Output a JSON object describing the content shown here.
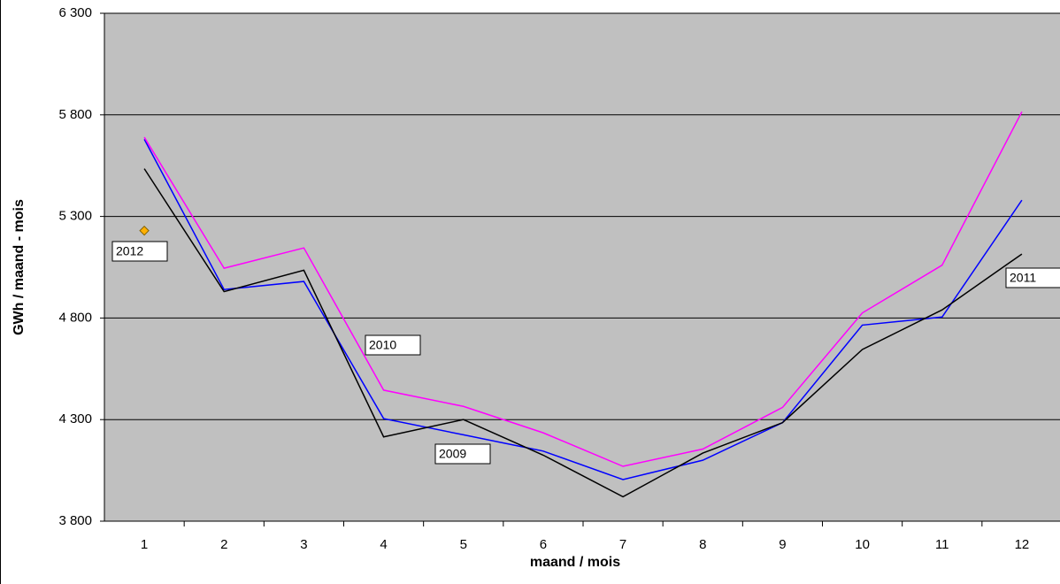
{
  "chart_data": {
    "type": "line",
    "x_label": "maand  /  mois",
    "y_label": "GWh / maand - mois",
    "categories": [
      "1",
      "2",
      "3",
      "4",
      "5",
      "6",
      "7",
      "8",
      "9",
      "10",
      "11",
      "12"
    ],
    "series": [
      {
        "name": "2009",
        "color": "#0000ff",
        "values": [
          5680,
          4940,
          4980,
          4305,
          4225,
          4145,
          4005,
          4100,
          4285,
          4765,
          4805,
          5380
        ]
      },
      {
        "name": "2010",
        "color": "#ff00ff",
        "values": [
          5690,
          5045,
          5145,
          4445,
          4365,
          4235,
          4070,
          4155,
          4360,
          4825,
          5060,
          5815
        ]
      },
      {
        "name": "2011",
        "color": "#000000",
        "values": [
          5535,
          4930,
          5035,
          4215,
          4300,
          4125,
          3920,
          4135,
          4285,
          4645,
          4840,
          5115
        ]
      },
      {
        "name": "2012",
        "color": "#ffb000",
        "marker": "diamond",
        "values": [
          5230,
          null,
          null,
          null,
          null,
          null,
          null,
          null,
          null,
          null,
          null,
          null
        ]
      }
    ],
    "ylim": [
      3800,
      6300
    ],
    "yticks": [
      {
        "value": 3800,
        "label": "3 800"
      },
      {
        "value": 4300,
        "label": "4 300"
      },
      {
        "value": 4800,
        "label": "4 800"
      },
      {
        "value": 5300,
        "label": "5 300"
      },
      {
        "value": 5800,
        "label": "5 800"
      },
      {
        "value": 6300,
        "label": "6 300"
      }
    ],
    "grid": true,
    "background": "#c0c0c0"
  }
}
